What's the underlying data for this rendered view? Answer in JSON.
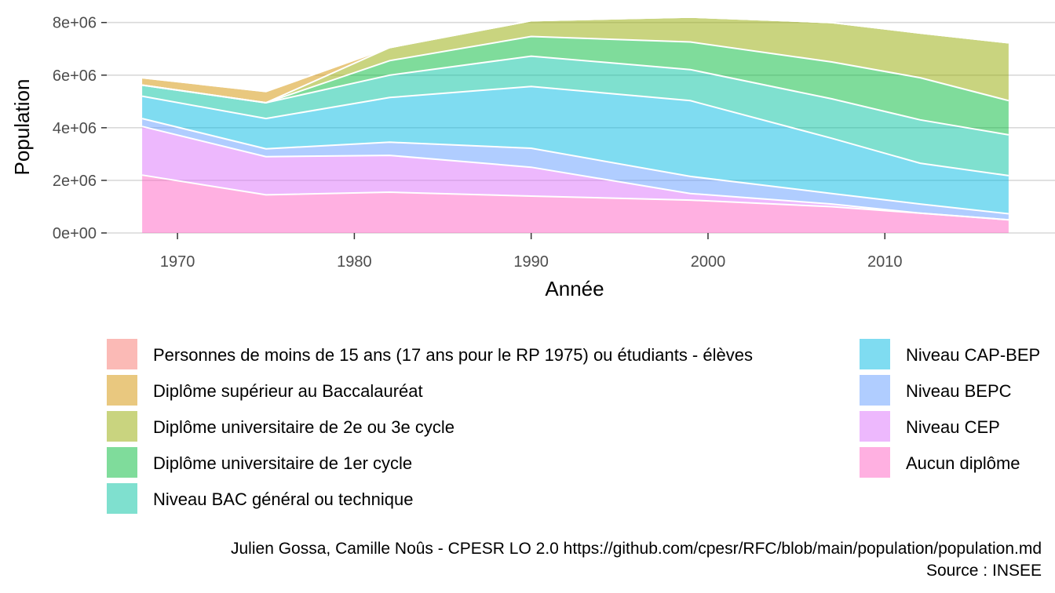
{
  "chart_data": {
    "type": "area",
    "stacked": true,
    "xlabel": "Année",
    "ylabel": "Population",
    "xlim": [
      1966,
      2019
    ],
    "ylim": [
      0,
      8200000
    ],
    "x_ticks": [
      1970,
      1980,
      1990,
      2000,
      2010
    ],
    "y_ticks": [
      0,
      2000000,
      4000000,
      6000000,
      8000000
    ],
    "y_tick_labels": [
      "0e+00",
      "2e+06",
      "4e+06",
      "6e+06",
      "8e+06"
    ],
    "grid": true,
    "legend_position": "bottom",
    "x": [
      1968,
      1975,
      1982,
      1990,
      1999,
      2007,
      2012,
      2017
    ],
    "series": [
      {
        "name": "Personnes de moins de 15 ans (17 ans pour le RP 1975) ou étudiants - élèves",
        "color": "#F8766D",
        "values": [
          0,
          0,
          0,
          0,
          0,
          0,
          0,
          0
        ]
      },
      {
        "name": "Diplôme supérieur au Baccalauréat",
        "color": "#D39200",
        "values": [
          280000,
          430000,
          0,
          0,
          0,
          0,
          0,
          0
        ]
      },
      {
        "name": "Diplôme universitaire de 2e ou 3e cycle",
        "color": "#93AA00",
        "values": [
          0,
          0,
          500000,
          600000,
          950000,
          1500000,
          1700000,
          2200000
        ]
      },
      {
        "name": "Diplôme universitaire de 1er cycle",
        "color": "#00BA38",
        "values": [
          0,
          0,
          550000,
          750000,
          1050000,
          1400000,
          1600000,
          1300000
        ]
      },
      {
        "name": "Niveau BAC général ou technique",
        "color": "#00C19F",
        "values": [
          420000,
          600000,
          850000,
          1150000,
          1180000,
          1500000,
          1650000,
          1550000
        ]
      },
      {
        "name": "Niveau CAP-BEP",
        "color": "#00B9E3",
        "values": [
          850000,
          1150000,
          1700000,
          2350000,
          2880000,
          2100000,
          1550000,
          1450000
        ]
      },
      {
        "name": "Niveau BEPC",
        "color": "#619CFF",
        "values": [
          300000,
          300000,
          500000,
          720000,
          650000,
          400000,
          350000,
          230000
        ]
      },
      {
        "name": "Niveau CEP",
        "color": "#DB72FB",
        "values": [
          1850000,
          1450000,
          1400000,
          1100000,
          250000,
          100000,
          0,
          0
        ]
      },
      {
        "name": "Aucun diplôme",
        "color": "#FF61C3",
        "values": [
          2200000,
          1450000,
          1550000,
          1400000,
          1250000,
          1000000,
          750000,
          500000
        ]
      }
    ],
    "caption": [
      "Julien Gossa, Camille Noûs - CPESR LO 2.0 https://github.com/cpesr/RFC/blob/main/population/population.md",
      "Source : INSEE"
    ]
  }
}
